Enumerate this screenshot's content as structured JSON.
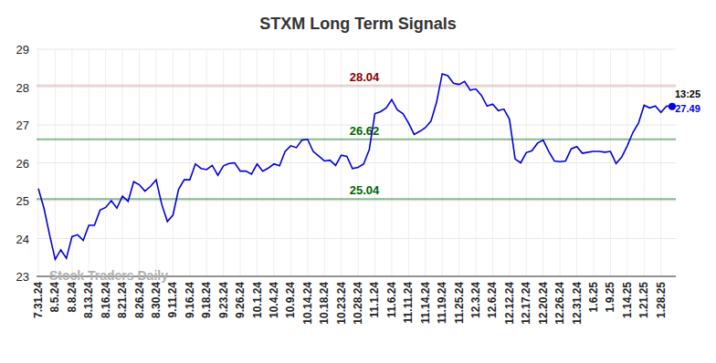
{
  "chart_data": {
    "type": "line",
    "title": "STXM Long Term Signals",
    "watermark": "Stock Traders Daily",
    "categories": [
      "7.31.24",
      null,
      null,
      "8.5.24",
      null,
      null,
      "8.8.24",
      null,
      null,
      "8.13.24",
      null,
      null,
      "8.16.24",
      null,
      null,
      "8.21.24",
      null,
      null,
      "8.26.24",
      null,
      null,
      "8.30.24",
      null,
      null,
      "9.11.24",
      null,
      null,
      "9.16.24",
      null,
      null,
      "9.18.24",
      null,
      null,
      "9.23.24",
      null,
      null,
      "9.26.24",
      null,
      null,
      "10.1.24",
      null,
      null,
      "10.4.24",
      null,
      null,
      "10.9.24",
      null,
      null,
      "10.14.24",
      null,
      null,
      "10.18.24",
      null,
      null,
      "10.23.24",
      null,
      null,
      "10.28.24",
      null,
      null,
      "11.1.24",
      null,
      null,
      "11.6.24",
      null,
      null,
      "11.11.24",
      null,
      null,
      "11.14.24",
      null,
      null,
      "11.19.24",
      null,
      null,
      "11.25.24",
      null,
      null,
      "12.3.24",
      null,
      null,
      "12.6.24",
      null,
      null,
      "12.12.24",
      null,
      null,
      "12.17.24",
      null,
      null,
      "12.20.24",
      null,
      null,
      "12.26.24",
      null,
      null,
      "12.31.24",
      null,
      null,
      "1.6.25",
      null,
      null,
      "1.9.25",
      null,
      null,
      "1.14.25",
      null,
      null,
      "1.21.25",
      null,
      null,
      "1.28.25",
      null,
      null
    ],
    "values": [
      25.32,
      24.8,
      24.1,
      23.45,
      23.7,
      23.48,
      24.05,
      24.1,
      23.95,
      24.35,
      24.35,
      24.75,
      24.82,
      25.0,
      24.8,
      25.12,
      24.98,
      25.5,
      25.42,
      25.25,
      25.38,
      25.55,
      24.9,
      24.45,
      24.62,
      25.3,
      25.55,
      25.55,
      25.97,
      25.85,
      25.82,
      25.93,
      25.67,
      25.92,
      25.98,
      26.0,
      25.78,
      25.78,
      25.7,
      25.97,
      25.78,
      25.86,
      25.97,
      25.92,
      26.3,
      26.45,
      26.4,
      26.6,
      26.62,
      26.3,
      26.18,
      26.05,
      26.07,
      25.93,
      26.2,
      26.17,
      25.85,
      25.88,
      25.97,
      26.35,
      27.3,
      27.35,
      27.45,
      27.67,
      27.4,
      27.3,
      27.05,
      26.75,
      26.83,
      26.93,
      27.1,
      27.6,
      28.35,
      28.3,
      28.1,
      28.07,
      28.15,
      27.92,
      27.95,
      27.78,
      27.5,
      27.55,
      27.38,
      27.42,
      27.15,
      26.1,
      26.0,
      26.27,
      26.32,
      26.52,
      26.6,
      26.3,
      26.05,
      26.03,
      26.05,
      26.37,
      26.43,
      26.25,
      26.28,
      26.3,
      26.3,
      26.28,
      26.3,
      25.98,
      26.15,
      26.45,
      26.8,
      27.05,
      27.52,
      27.45,
      27.5,
      27.33,
      27.5,
      27.49
    ],
    "color": "#0000dd",
    "ylim": [
      23,
      29
    ],
    "yticks": [
      23,
      24,
      25,
      26,
      27,
      28,
      29
    ],
    "grid": true,
    "annotations": [
      {
        "value": 28.04,
        "label": "28.04",
        "color": "#8b0000"
      },
      {
        "value": 26.62,
        "label": "26.62",
        "color": "#006400"
      },
      {
        "value": 25.04,
        "label": "25.04",
        "color": "#006400"
      }
    ],
    "last_label": {
      "time": "13:25",
      "value": 27.49,
      "label": "27.49"
    }
  }
}
